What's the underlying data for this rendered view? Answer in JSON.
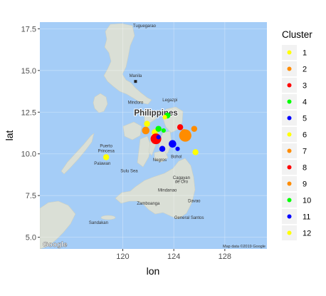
{
  "chart_data": {
    "type": "scatter",
    "title": "",
    "xlabel": "lon",
    "ylabel": "lat",
    "xlim": [
      113.5,
      131.3
    ],
    "ylim": [
      4.3,
      17.9
    ],
    "x_ticks": [
      120,
      124,
      128
    ],
    "y_ticks": [
      5.0,
      7.5,
      10.0,
      12.5,
      15.0,
      17.5
    ],
    "x_tick_labels": [
      "120",
      "124",
      "128"
    ],
    "y_tick_labels": [
      "5.0",
      "7.5",
      "10.0",
      "12.5",
      "15.0",
      "17.5"
    ],
    "grid": true,
    "legend": {
      "title": "Cluster",
      "position": "right"
    },
    "series": [
      {
        "name": "1",
        "color": "#FFFF00",
        "points": [
          {
            "x": 122.5,
            "y": 11.3,
            "size": 2
          },
          {
            "x": 118.7,
            "y": 9.8,
            "size": 2
          }
        ]
      },
      {
        "name": "2",
        "color": "#FF8C00",
        "points": [
          {
            "x": 121.8,
            "y": 11.4,
            "size": 3
          },
          {
            "x": 125.6,
            "y": 11.5,
            "size": 2
          }
        ]
      },
      {
        "name": "3",
        "color": "#FF0000",
        "points": [
          {
            "x": 122.6,
            "y": 10.9,
            "size": 5
          }
        ]
      },
      {
        "name": "4",
        "color": "#00FF00",
        "points": [
          {
            "x": 122.8,
            "y": 11.5,
            "size": 2
          }
        ]
      },
      {
        "name": "5",
        "color": "#0000FF",
        "points": [
          {
            "x": 123.9,
            "y": 10.6,
            "size": 3
          },
          {
            "x": 123.1,
            "y": 10.3,
            "size": 2
          }
        ]
      },
      {
        "name": "6",
        "color": "#FFFF00",
        "points": [
          {
            "x": 125.7,
            "y": 10.1,
            "size": 2
          },
          {
            "x": 121.9,
            "y": 11.8,
            "size": 2
          }
        ]
      },
      {
        "name": "7",
        "color": "#FF8C00",
        "points": [
          {
            "x": 124.9,
            "y": 11.1,
            "size": 6
          }
        ]
      },
      {
        "name": "8",
        "color": "#FF0000",
        "points": [
          {
            "x": 124.5,
            "y": 11.6,
            "size": 2
          }
        ]
      },
      {
        "name": "9",
        "color": "#FF8C00",
        "points": [
          {
            "x": 124.8,
            "y": 11.3,
            "size": 2
          }
        ]
      },
      {
        "name": "10",
        "color": "#00FF00",
        "points": [
          {
            "x": 123.5,
            "y": 12.3,
            "size": 2
          },
          {
            "x": 123.2,
            "y": 11.4,
            "size": 1
          }
        ]
      },
      {
        "name": "11",
        "color": "#0000FF",
        "points": [
          {
            "x": 122.8,
            "y": 11.0,
            "size": 1
          },
          {
            "x": 124.3,
            "y": 10.3,
            "size": 1
          }
        ]
      },
      {
        "name": "12",
        "color": "#FFFF00",
        "points": [
          {
            "x": 123.3,
            "y": 12.2,
            "size": 1
          }
        ]
      }
    ]
  },
  "basemap": {
    "provider_logo": "Google",
    "attribution": "Map data ©2019 Google",
    "places": [
      {
        "name": "Tuguegarao",
        "x": 121.7,
        "y": 17.6,
        "kind": "city"
      },
      {
        "name": "Manila",
        "x": 121.0,
        "y": 14.6,
        "kind": "city"
      },
      {
        "name": "Mindoro",
        "x": 121.0,
        "y": 13.0,
        "kind": "region"
      },
      {
        "name": "Legazpi",
        "x": 123.7,
        "y": 13.15,
        "kind": "city"
      },
      {
        "name": "Masbate",
        "x": 123.6,
        "y": 12.35,
        "kind": "city"
      },
      {
        "name": "Philippines",
        "x": 122.6,
        "y": 12.3,
        "kind": "country"
      },
      {
        "name": "Puerto",
        "x": 118.7,
        "y": 10.4,
        "kind": "city"
      },
      {
        "name": "Princesa",
        "x": 118.7,
        "y": 10.1,
        "kind": "city"
      },
      {
        "name": "Palawan",
        "x": 118.4,
        "y": 9.35,
        "kind": "region"
      },
      {
        "name": "Bohol",
        "x": 124.2,
        "y": 9.75,
        "kind": "region"
      },
      {
        "name": "Negros",
        "x": 122.9,
        "y": 9.55,
        "kind": "region"
      },
      {
        "name": "Sulu Sea",
        "x": 120.5,
        "y": 8.9,
        "kind": "sea"
      },
      {
        "name": "Cagayan",
        "x": 124.6,
        "y": 8.5,
        "kind": "city"
      },
      {
        "name": "de Oro",
        "x": 124.6,
        "y": 8.25,
        "kind": "city"
      },
      {
        "name": "Mindanao",
        "x": 123.5,
        "y": 7.75,
        "kind": "region"
      },
      {
        "name": "Zamboanga",
        "x": 122.0,
        "y": 6.95,
        "kind": "city"
      },
      {
        "name": "Davao",
        "x": 125.6,
        "y": 7.1,
        "kind": "city"
      },
      {
        "name": "General Santos",
        "x": 125.2,
        "y": 6.1,
        "kind": "city"
      },
      {
        "name": "Sandakan",
        "x": 118.1,
        "y": 5.8,
        "kind": "city"
      }
    ]
  }
}
